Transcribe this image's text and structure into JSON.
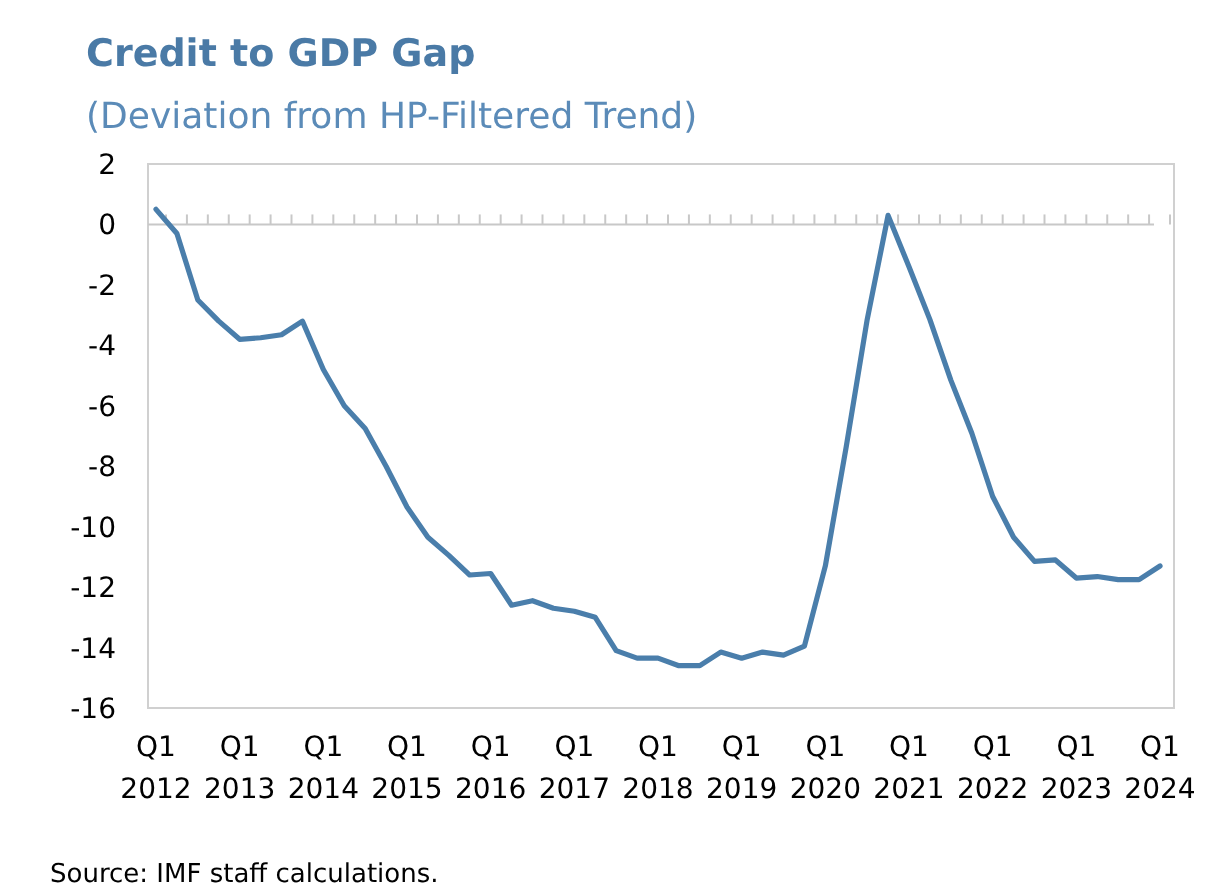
{
  "chart_data": {
    "type": "line",
    "title": "Credit to GDP Gap",
    "subtitle": "(Deviation from HP-Filtered Trend)",
    "categories": [
      "Q1 2012",
      null,
      null,
      null,
      "Q1 2013",
      null,
      null,
      null,
      "Q1 2014",
      null,
      null,
      null,
      "Q1 2015",
      null,
      null,
      null,
      "Q1 2016",
      null,
      null,
      null,
      "Q1 2017",
      null,
      null,
      null,
      "Q1 2018",
      null,
      null,
      null,
      "Q1 2019",
      null,
      null,
      null,
      "Q1 2020",
      null,
      null,
      null,
      "Q1 2021",
      null,
      null,
      null,
      "Q1 2022",
      null,
      null,
      null,
      "Q1 2023",
      null,
      null,
      null,
      "Q1 2024"
    ],
    "series": [
      {
        "color": "#4a7eab",
        "values": [
          0.5,
          -0.3,
          -2.5,
          -3.2,
          -3.8,
          -3.75,
          -3.65,
          -3.2,
          -4.8,
          -6.0,
          -6.75,
          -8.0,
          -9.35,
          -10.35,
          -10.95,
          -11.6,
          -11.55,
          -12.6,
          -12.45,
          -12.7,
          -12.8,
          -13.0,
          -14.1,
          -14.35,
          -14.35,
          -14.6,
          -14.6,
          -14.15,
          -14.35,
          -14.15,
          -14.25,
          -13.95,
          -11.3,
          -7.35,
          -3.15,
          0.3,
          -1.4,
          -3.15,
          -5.15,
          -6.9,
          -9.0,
          -10.35,
          -11.15,
          -11.1,
          -11.7,
          -11.65,
          -11.75,
          -11.75,
          -11.3
        ]
      }
    ],
    "ylim": [
      -16,
      2
    ],
    "yticks": [
      -16,
      -14,
      -12,
      -10,
      -8,
      -6,
      -4,
      -2,
      0,
      2
    ],
    "annotations": [
      "Source: IMF staff calculations."
    ]
  }
}
